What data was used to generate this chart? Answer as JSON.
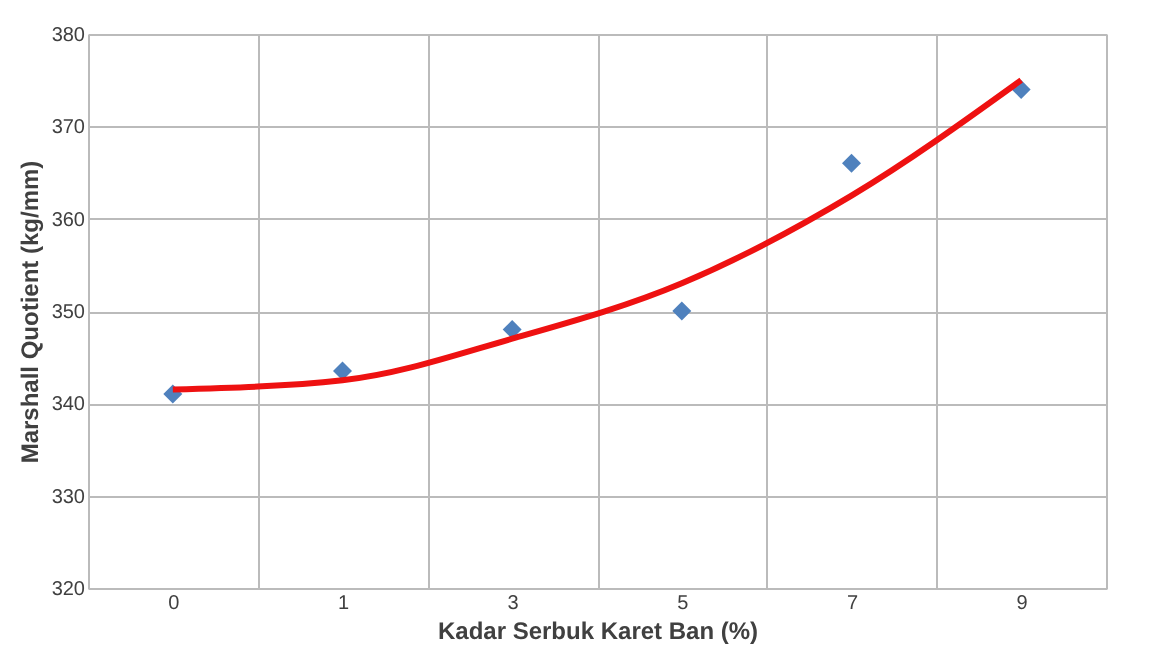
{
  "chart_data": {
    "type": "scatter",
    "xlabel": "Kadar Serbuk Karet Ban (%)",
    "ylabel": "Marshall Quotient (kg/mm)",
    "categories": [
      "0",
      "1",
      "3",
      "5",
      "7",
      "9"
    ],
    "series": [
      {
        "color": "#4f81bd",
        "marker": "diamond",
        "values": [
          341,
          343.5,
          348,
          350,
          366,
          374
        ]
      },
      {
        "type": "line",
        "color": "#ee1111",
        "marker": "none",
        "line_style": "solid",
        "values": [
          341.5,
          342.5,
          347,
          353,
          362.5,
          375
        ]
      }
    ],
    "ylim": [
      320,
      380
    ],
    "yticks": [
      320,
      330,
      340,
      350,
      360,
      370,
      380
    ],
    "grid": true,
    "legend": false
  }
}
